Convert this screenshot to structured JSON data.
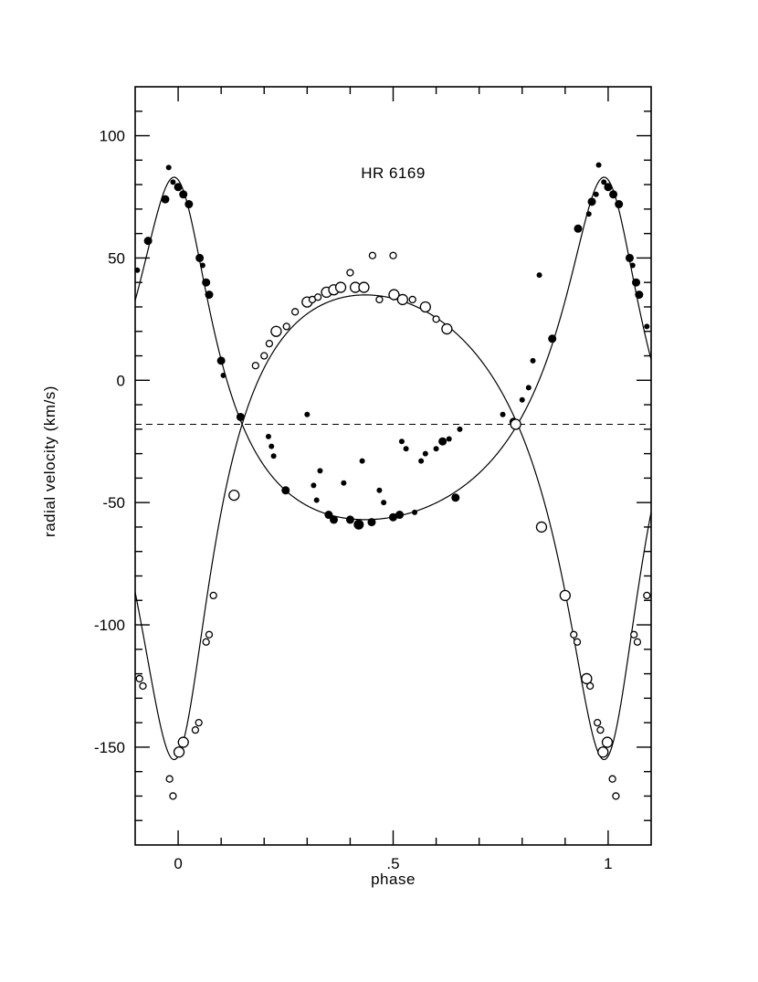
{
  "chart_data": {
    "type": "scatter",
    "title": "HR 6169",
    "xlabel": "phase",
    "ylabel": "radial velocity (km/s)",
    "xlim": [
      -0.1,
      1.1
    ],
    "ylim": [
      -190,
      120
    ],
    "x_ticks_major": [
      0,
      0.5,
      1
    ],
    "x_tick_labels": [
      "0",
      ".5",
      "1"
    ],
    "x_minor_step": 0.1,
    "y_ticks_major": [
      100,
      50,
      0,
      -50,
      -100,
      -150
    ],
    "y_tick_labels": [
      "100",
      "50",
      "0",
      "-50",
      "-100",
      "-150"
    ],
    "y_minor_step": 10,
    "grid": false,
    "legend": null,
    "systemic_velocity_kms": -18,
    "curve_color": "#000000",
    "orbit_model": {
      "gamma_kms": -18,
      "eccentricity": 0.45,
      "omega_deg": 10,
      "phase_of_periastron": 0,
      "K_primary_kms": 70,
      "K_secondary_kms": 95
    },
    "series": [
      {
        "name": "primary component (filled circles)",
        "marker": "filled-circle",
        "color": "#000000",
        "points": [
          [
            -0.095,
            45,
            3
          ],
          [
            -0.07,
            57,
            4.5
          ],
          [
            -0.03,
            74,
            4.5
          ],
          [
            -0.022,
            87,
            3
          ],
          [
            -0.012,
            81,
            3
          ],
          [
            0,
            79,
            4.5
          ],
          [
            0.012,
            76,
            4.5
          ],
          [
            0.025,
            72,
            4.5
          ],
          [
            0.05,
            50,
            4.5
          ],
          [
            0.057,
            47,
            3
          ],
          [
            0.065,
            40,
            4.5
          ],
          [
            0.072,
            35,
            4.5
          ],
          [
            0.1,
            8,
            4.5
          ],
          [
            0.105,
            2,
            3
          ],
          [
            0.145,
            -15,
            4.5
          ],
          [
            0.21,
            -23,
            3
          ],
          [
            0.217,
            -27,
            3
          ],
          [
            0.222,
            -31,
            3
          ],
          [
            0.25,
            -45,
            4.5
          ],
          [
            0.3,
            -14,
            3
          ],
          [
            0.315,
            -43,
            3
          ],
          [
            0.322,
            -49,
            3
          ],
          [
            0.33,
            -37,
            3
          ],
          [
            0.35,
            -55,
            4.5
          ],
          [
            0.362,
            -57,
            4.5
          ],
          [
            0.385,
            -42,
            3
          ],
          [
            0.4,
            -57,
            4.5
          ],
          [
            0.42,
            -59,
            5.5
          ],
          [
            0.428,
            -33,
            3
          ],
          [
            0.45,
            -58,
            4.5
          ],
          [
            0.468,
            -45,
            3
          ],
          [
            0.478,
            -50,
            3
          ],
          [
            0.5,
            -56,
            4.5
          ],
          [
            0.515,
            -55,
            4.5
          ],
          [
            0.52,
            -25,
            3
          ],
          [
            0.53,
            -28,
            3
          ],
          [
            0.55,
            -54,
            3
          ],
          [
            0.565,
            -33,
            3
          ],
          [
            0.575,
            -30,
            3
          ],
          [
            0.6,
            -28,
            3
          ],
          [
            0.615,
            -25,
            4.5
          ],
          [
            0.63,
            -24,
            3
          ],
          [
            0.645,
            -48,
            4.5
          ],
          [
            0.655,
            -20,
            3
          ],
          [
            0.755,
            -14,
            3
          ],
          [
            0.78,
            -17,
            4.5
          ],
          [
            0.8,
            -8,
            3
          ],
          [
            0.815,
            -3,
            3
          ],
          [
            0.825,
            8,
            3
          ],
          [
            0.84,
            43,
            3
          ],
          [
            0.87,
            17,
            4.5
          ],
          [
            0.93,
            62,
            4.5
          ],
          [
            0.955,
            68,
            3
          ],
          [
            0.962,
            73,
            4.5
          ],
          [
            0.972,
            76,
            3
          ],
          [
            0.978,
            88,
            3
          ],
          [
            0.99,
            81,
            3
          ],
          [
            1,
            79,
            4.5
          ],
          [
            1.012,
            76,
            4.5
          ],
          [
            1.025,
            72,
            4.5
          ],
          [
            1.05,
            50,
            4.5
          ],
          [
            1.057,
            47,
            3
          ],
          [
            1.065,
            40,
            4.5
          ],
          [
            1.072,
            35,
            4.5
          ],
          [
            1.09,
            22,
            3
          ]
        ]
      },
      {
        "name": "secondary component (open circles)",
        "marker": "open-circle",
        "color": "#000000",
        "points": [
          [
            -0.09,
            -122,
            3.5
          ],
          [
            -0.082,
            -125,
            3.5
          ],
          [
            -0.02,
            -163,
            3.5
          ],
          [
            -0.012,
            -170,
            3.5
          ],
          [
            0.002,
            -152,
            5.5
          ],
          [
            0.012,
            -148,
            5.5
          ],
          [
            0.04,
            -143,
            3.5
          ],
          [
            0.048,
            -140,
            3.5
          ],
          [
            0.065,
            -107,
            3.5
          ],
          [
            0.072,
            -104,
            3.5
          ],
          [
            0.082,
            -88,
            3.5
          ],
          [
            0.13,
            -47,
            5.5
          ],
          [
            0.18,
            6,
            3.5
          ],
          [
            0.2,
            10,
            3.5
          ],
          [
            0.212,
            15,
            3.5
          ],
          [
            0.228,
            20,
            5.5
          ],
          [
            0.252,
            22,
            3.5
          ],
          [
            0.272,
            28,
            3.5
          ],
          [
            0.3,
            32,
            5.5
          ],
          [
            0.312,
            33,
            3.5
          ],
          [
            0.325,
            34,
            3.5
          ],
          [
            0.345,
            36,
            5.5
          ],
          [
            0.362,
            37,
            5.5
          ],
          [
            0.378,
            38,
            5.5
          ],
          [
            0.4,
            44,
            3.5
          ],
          [
            0.412,
            38,
            5.5
          ],
          [
            0.432,
            38,
            5.5
          ],
          [
            0.452,
            51,
            3.5
          ],
          [
            0.468,
            33,
            3.5
          ],
          [
            0.5,
            51,
            3.5
          ],
          [
            0.502,
            35,
            5.5
          ],
          [
            0.522,
            33,
            5.5
          ],
          [
            0.545,
            33,
            3.5
          ],
          [
            0.575,
            30,
            5.5
          ],
          [
            0.6,
            25,
            3.5
          ],
          [
            0.625,
            21,
            5.5
          ],
          [
            0.785,
            -18,
            5.5
          ],
          [
            0.845,
            -60,
            5.5
          ],
          [
            0.9,
            -88,
            5.5
          ],
          [
            0.92,
            -104,
            3.5
          ],
          [
            0.928,
            -107,
            3.5
          ],
          [
            0.95,
            -122,
            5.5
          ],
          [
            0.958,
            -125,
            3.5
          ],
          [
            0.975,
            -140,
            3.5
          ],
          [
            0.982,
            -143,
            3.5
          ],
          [
            0.988,
            -152,
            5.5
          ],
          [
            0.998,
            -148,
            5.5
          ],
          [
            1.01,
            -163,
            3.5
          ],
          [
            1.018,
            -170,
            3.5
          ],
          [
            1.06,
            -104,
            3.5
          ],
          [
            1.068,
            -107,
            3.5
          ],
          [
            1.09,
            -88,
            3.5
          ]
        ]
      }
    ]
  }
}
